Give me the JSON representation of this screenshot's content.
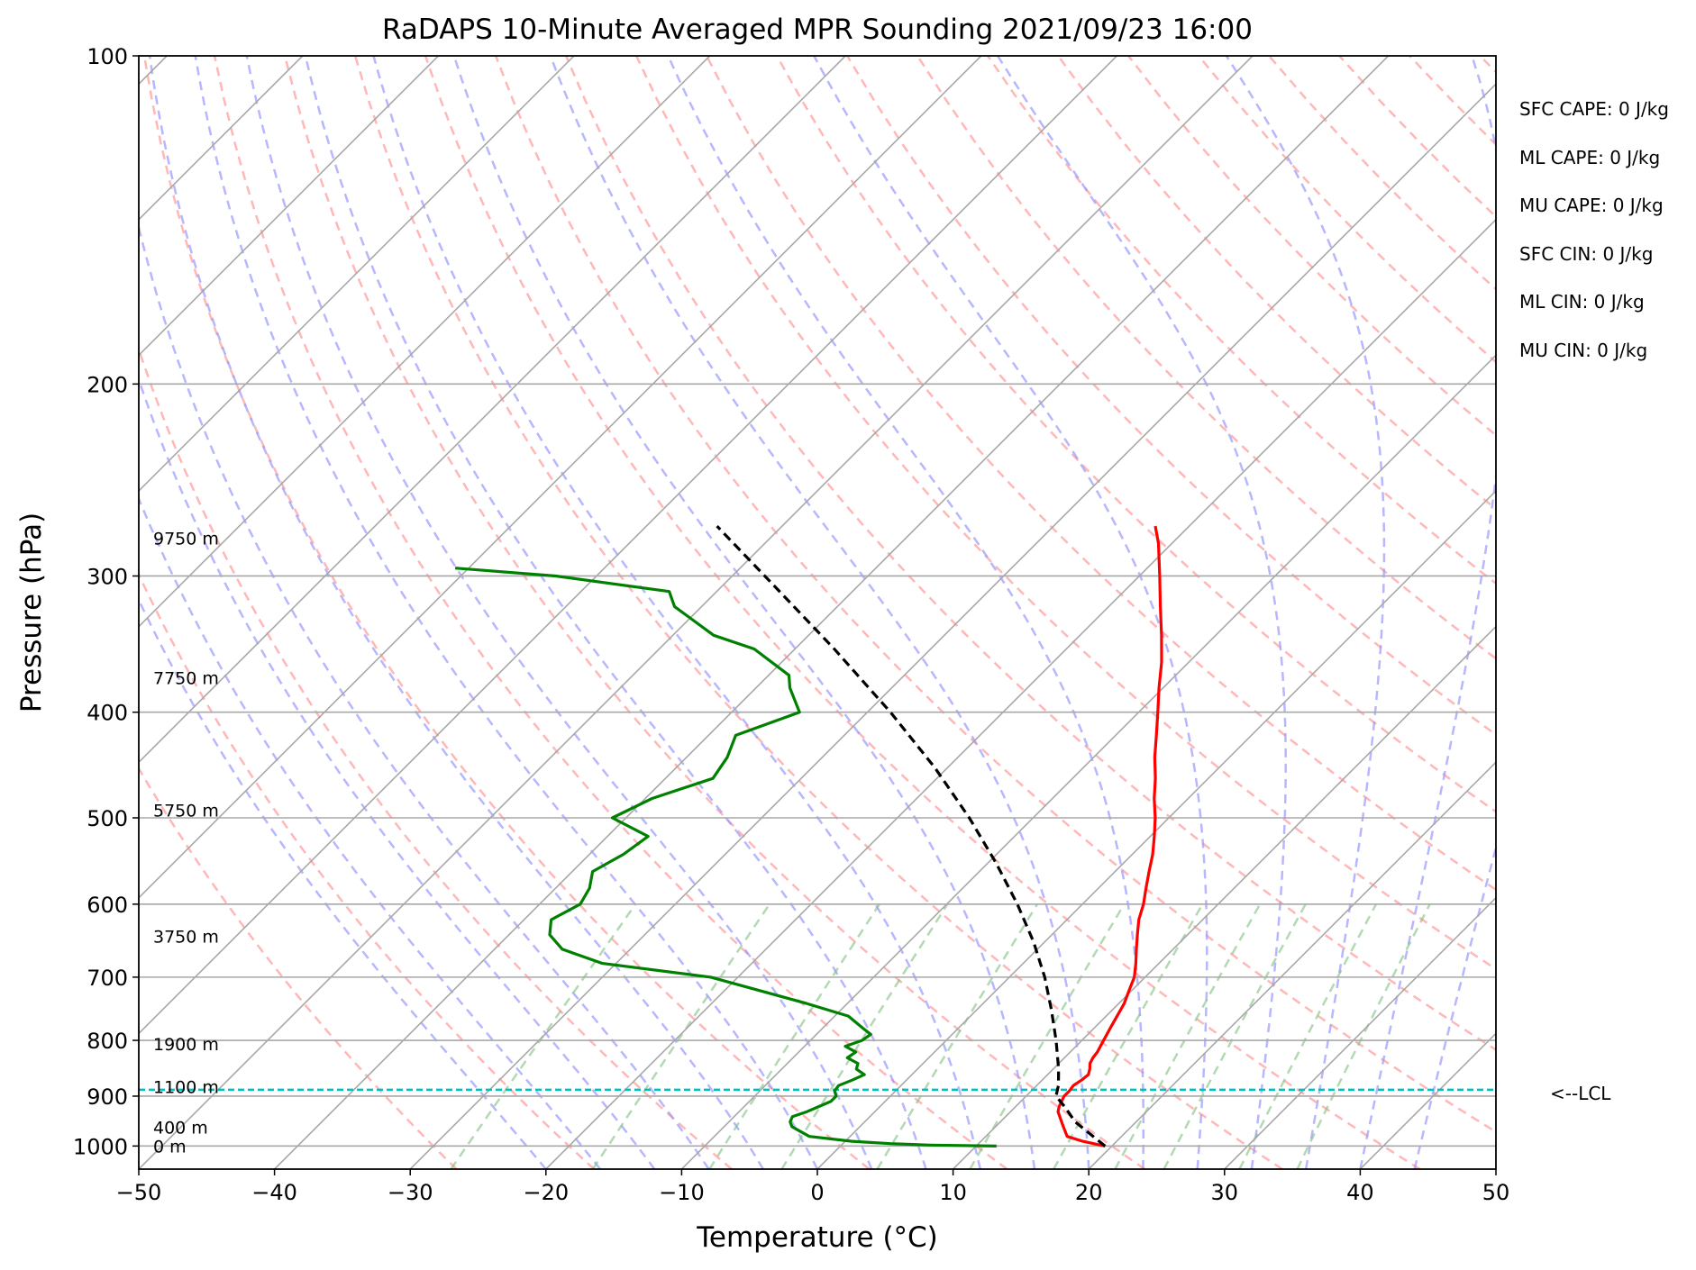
{
  "chart_data": {
    "type": "line",
    "title": "RaDAPS 10-Minute Averaged MPR Sounding 2021/09/23 16:00",
    "xlabel": "Temperature (°C)",
    "ylabel": "Pressure (hPa)",
    "xlim": [
      -50,
      50
    ],
    "ylim": [
      1050,
      100
    ],
    "y_scale": "log",
    "x_ticks": [
      "−50",
      "−40",
      "−30",
      "−20",
      "−10",
      "0",
      "10",
      "20",
      "30",
      "40",
      "50"
    ],
    "y_ticks": [
      "100",
      "200",
      "300",
      "400",
      "500",
      "600",
      "700",
      "800",
      "900",
      "1000"
    ],
    "grid": true,
    "skew_t": true,
    "series": [
      {
        "color": "#ff0000",
        "pressure": [
          1000,
          990,
          980,
          970,
          960,
          950,
          940,
          930,
          920,
          910,
          900,
          890,
          880,
          870,
          860,
          850,
          840,
          830,
          820,
          810,
          800,
          780,
          760,
          740,
          720,
          700,
          680,
          660,
          640,
          620,
          600,
          580,
          560,
          540,
          520,
          500,
          480,
          460,
          440,
          420,
          400,
          380,
          360,
          340,
          320,
          300,
          280,
          270
        ],
        "temperature": [
          19.5,
          17.5,
          16.0,
          15.5,
          15.0,
          14.5,
          14.0,
          13.5,
          13.2,
          13.0,
          12.8,
          12.8,
          12.7,
          12.9,
          13.0,
          12.7,
          12.3,
          12.1,
          12.0,
          11.8,
          11.6,
          11.2,
          10.8,
          10.4,
          9.8,
          9.2,
          8.3,
          7.3,
          6.3,
          5.3,
          4.5,
          3.5,
          2.5,
          1.5,
          0.3,
          -1.0,
          -2.5,
          -3.9,
          -5.5,
          -7.0,
          -8.6,
          -10.3,
          -12.0,
          -14.0,
          -16.2,
          -18.5,
          -21.0,
          -22.5
        ]
      },
      {
        "color": "#008000",
        "pressure": [
          1000,
          998,
          995,
          990,
          980,
          970,
          960,
          950,
          940,
          930,
          920,
          910,
          900,
          890,
          880,
          870,
          860,
          850,
          840,
          830,
          820,
          810,
          800,
          790,
          780,
          760,
          740,
          700,
          680,
          660,
          640,
          620,
          600,
          580,
          560,
          540,
          520,
          500,
          480,
          460,
          440,
          420,
          400,
          380,
          370,
          350,
          340,
          320,
          310,
          300,
          295
        ],
        "dewpoint": [
          11.5,
          6.5,
          3.5,
          0.5,
          -3.0,
          -4.0,
          -5.0,
          -5.5,
          -5.7,
          -5.0,
          -4.5,
          -4.0,
          -4.0,
          -4.5,
          -4.6,
          -4.0,
          -3.5,
          -4.5,
          -4.8,
          -6.0,
          -5.8,
          -7.0,
          -6.2,
          -6.0,
          -7.0,
          -9.0,
          -13.0,
          -22.0,
          -31.0,
          -35.0,
          -37.0,
          -38.0,
          -37.0,
          -37.5,
          -38.5,
          -37.5,
          -37.0,
          -41.0,
          -39.5,
          -36.5,
          -37.0,
          -38.0,
          -35.0,
          -37.5,
          -38.5,
          -43.0,
          -47.0,
          -52.0,
          -53.5,
          -63.0,
          -71.0
        ]
      },
      {
        "color": "#000000",
        "pressure": [
          1000,
          950,
          920,
          900,
          880,
          850,
          800,
          750,
          700,
          650,
          600,
          550,
          500,
          450,
          400,
          350,
          300,
          270
        ],
        "temperature": [
          19.5,
          15.5,
          13.6,
          12.2,
          11.6,
          10.4,
          8.1,
          5.5,
          2.6,
          -0.8,
          -4.8,
          -9.4,
          -14.7,
          -20.9,
          -28.3,
          -37.1,
          -47.6,
          -54.8
        ]
      }
    ],
    "lcl": {
      "pressure": 888,
      "label": "<--LCL"
    },
    "height_labels": [
      {
        "pressure": 1000,
        "text": "0 m"
      },
      {
        "pressure": 961,
        "text": "400 m"
      },
      {
        "pressure": 882,
        "text": "1100 m"
      },
      {
        "pressure": 806,
        "text": "1900 m"
      },
      {
        "pressure": 642,
        "text": "3750 m"
      },
      {
        "pressure": 492,
        "text": "5750 m"
      },
      {
        "pressure": 372,
        "text": "7750 m"
      },
      {
        "pressure": 277,
        "text": "9750 m"
      }
    ],
    "annotations": [
      "SFC CAPE: 0 J/kg",
      "ML CAPE: 0 J/kg",
      "MU CAPE: 0 J/kg",
      "SFC CIN: 0 J/kg",
      "ML CIN: 0 J/kg",
      "MU CIN: 0 J/kg"
    ],
    "colors": {
      "temperature": "#ff0000",
      "dewpoint": "#008000",
      "parcel": "#000000",
      "lcl": "#00bfbf",
      "isotherm": "#a8a8a8",
      "dry_adiabat": "#ff9999",
      "moist_adiabat": "#9999ff",
      "mixing_ratio": "#7fbf7f"
    }
  }
}
